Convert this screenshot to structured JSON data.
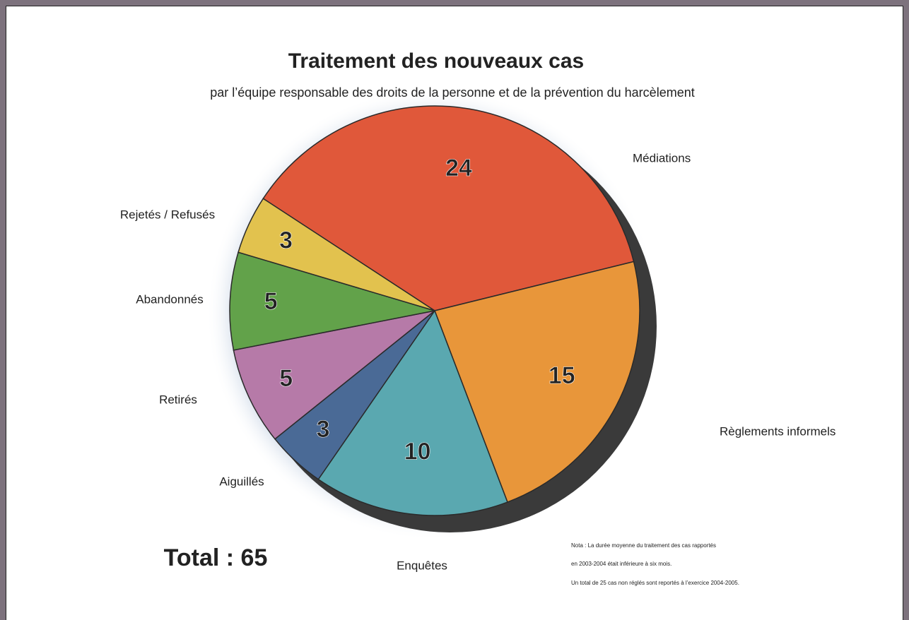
{
  "chart_data": {
    "type": "pie",
    "title": "Traitement des nouveaux cas",
    "subtitle": "par l’équipe responsable des droits de la personne et de la prévention du harcèlement",
    "categories": [
      "Médiations",
      "Règlements informels",
      "Enquêtes",
      "Aiguillés",
      "Retirés",
      "Abandonnés",
      "Rejetés / Refusés"
    ],
    "values": [
      24,
      15,
      10,
      3,
      5,
      5,
      3
    ],
    "colors": [
      "#e0583a",
      "#e8963a",
      "#5aa8b0",
      "#4a6a96",
      "#b67aa8",
      "#62a24a",
      "#e2c24e"
    ],
    "total_label": "Total : 65",
    "note": [
      "Nota : La durée moyenne du traitement des cas rapportés",
      "en 2003-2004 était inférieure à six mois.",
      "Un total de 25 cas non réglés sont reportés à l’exercice 2004-2005."
    ]
  }
}
